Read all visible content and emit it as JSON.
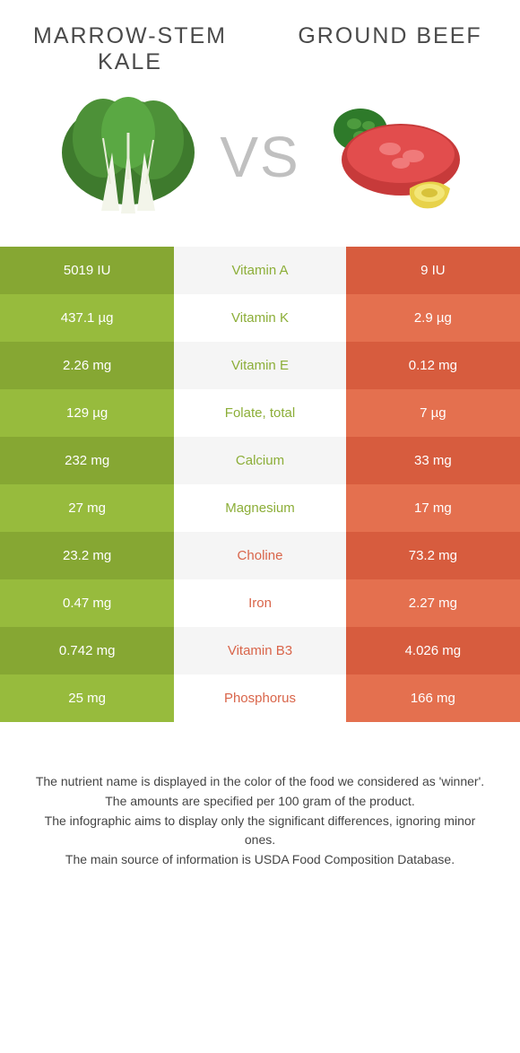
{
  "left_food": {
    "title": "MARROW-STEM KALE",
    "colors": {
      "dark": "#86a733",
      "light": "#97bb3d"
    },
    "text_color": "#8cae38"
  },
  "right_food": {
    "title": "GROUND BEEF",
    "colors": {
      "dark": "#d75c3e",
      "light": "#e4704f"
    },
    "text_color": "#d9654a"
  },
  "vs_label": "VS",
  "nutrients": [
    {
      "name": "Vitamin A",
      "left": "5019 IU",
      "right": "9 IU",
      "winner": "left"
    },
    {
      "name": "Vitamin K",
      "left": "437.1 µg",
      "right": "2.9 µg",
      "winner": "left"
    },
    {
      "name": "Vitamin E",
      "left": "2.26 mg",
      "right": "0.12 mg",
      "winner": "left"
    },
    {
      "name": "Folate, total",
      "left": "129 µg",
      "right": "7 µg",
      "winner": "left"
    },
    {
      "name": "Calcium",
      "left": "232 mg",
      "right": "33 mg",
      "winner": "left"
    },
    {
      "name": "Magnesium",
      "left": "27 mg",
      "right": "17 mg",
      "winner": "left"
    },
    {
      "name": "Choline",
      "left": "23.2 mg",
      "right": "73.2 mg",
      "winner": "right"
    },
    {
      "name": "Iron",
      "left": "0.47 mg",
      "right": "2.27 mg",
      "winner": "right"
    },
    {
      "name": "Vitamin B3",
      "left": "0.742 mg",
      "right": "4.026 mg",
      "winner": "right"
    },
    {
      "name": "Phosphorus",
      "left": "25 mg",
      "right": "166 mg",
      "winner": "right"
    }
  ],
  "footer_lines": [
    "The nutrient name is displayed in the color of the food we considered as 'winner'.",
    "The amounts are specified per 100 gram of the product.",
    "The infographic aims to display only the significant differences, ignoring minor ones.",
    "The main source of information is USDA Food Composition Database."
  ]
}
